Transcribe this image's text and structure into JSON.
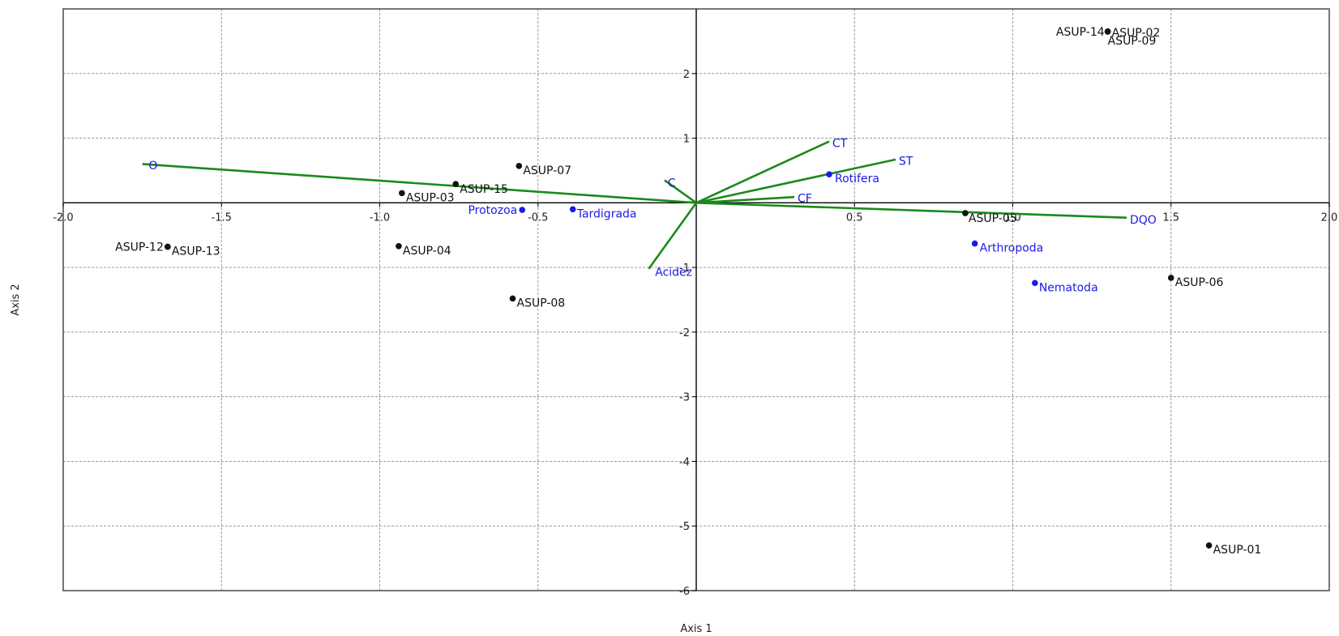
{
  "chart_data": {
    "type": "scatter",
    "title": "",
    "xlabel": "Axis 1",
    "ylabel": "Axis 2",
    "xlim": [
      -2.0,
      2.0
    ],
    "ylim": [
      -6,
      3.0
    ],
    "x_ticks": [
      -2.0,
      -1.5,
      -1.0,
      -0.5,
      0.5,
      1.0,
      1.5,
      2.0
    ],
    "x_tick_labels": [
      "-2.0",
      "-1.5",
      "-1.0",
      "-0.5",
      "0.5",
      "1.0",
      "1.5",
      "2.0"
    ],
    "y_ticks": [
      2,
      1,
      -1,
      -2,
      -3,
      -4,
      -5,
      -6
    ],
    "y_tick_labels": [
      "2",
      "1",
      "-1",
      "-2",
      "-3",
      "-4",
      "-5",
      "-6"
    ],
    "grid": true,
    "colors": {
      "sites": "#111111",
      "species": "#1a1ae6",
      "environment": "#1a8a1a"
    },
    "sites": [
      {
        "label": "ASUP-14",
        "x": 1.3,
        "y": 2.65,
        "anchor": "end",
        "dx": -4,
        "dy": 5
      },
      {
        "label": "ASUP-02",
        "x": 1.3,
        "y": 2.65,
        "anchor": "start",
        "dx": 5,
        "dy": 6
      },
      {
        "label": "ASUP-09",
        "x": 1.3,
        "y": 2.65,
        "anchor": "start",
        "dx": 0,
        "dy": 16
      },
      {
        "label": "ASUP-07",
        "x": -0.56,
        "y": 0.57,
        "anchor": "start",
        "dx": 5,
        "dy": 10
      },
      {
        "label": "ASUP-15",
        "x": -0.76,
        "y": 0.29,
        "anchor": "start",
        "dx": 5,
        "dy": 11
      },
      {
        "label": "ASUP-03",
        "x": -0.93,
        "y": 0.15,
        "anchor": "start",
        "dx": 5,
        "dy": 10
      },
      {
        "label": "ASUP-05",
        "x": 0.85,
        "y": -0.16,
        "anchor": "start",
        "dx": 4,
        "dy": 11
      },
      {
        "label": "ASUP-12",
        "x": -1.67,
        "y": -0.68,
        "anchor": "end",
        "dx": -5,
        "dy": 5
      },
      {
        "label": "ASUP-13",
        "x": -1.67,
        "y": -0.68,
        "anchor": "start",
        "dx": 5,
        "dy": 10
      },
      {
        "label": "ASUP-04",
        "x": -0.94,
        "y": -0.67,
        "anchor": "start",
        "dx": 5,
        "dy": 10
      },
      {
        "label": "ASUP-06",
        "x": 1.5,
        "y": -1.16,
        "anchor": "start",
        "dx": 5,
        "dy": 10
      },
      {
        "label": "ASUP-08",
        "x": -0.58,
        "y": -1.48,
        "anchor": "start",
        "dx": 5,
        "dy": 10
      },
      {
        "label": "ASUP-01",
        "x": 1.62,
        "y": -5.3,
        "anchor": "start",
        "dx": 5,
        "dy": 10
      }
    ],
    "species": [
      {
        "label": "Rotifera",
        "x": 0.42,
        "y": 0.44,
        "anchor": "start",
        "dx": 7,
        "dy": 10
      },
      {
        "label": "Protozoa",
        "x": -0.55,
        "y": -0.11,
        "anchor": "end",
        "dx": -6,
        "dy": 5
      },
      {
        "label": "Tardigrada",
        "x": -0.39,
        "y": -0.1,
        "anchor": "start",
        "dx": 5,
        "dy": 10
      },
      {
        "label": "Arthropoda",
        "x": 0.88,
        "y": -0.63,
        "anchor": "start",
        "dx": 6,
        "dy": 10
      },
      {
        "label": "Nematoda",
        "x": 1.07,
        "y": -1.24,
        "anchor": "start",
        "dx": 5,
        "dy": 10
      }
    ],
    "environment": [
      {
        "label": "O",
        "x": -1.75,
        "y": 0.6,
        "lx": -1.73,
        "ly": 0.52
      },
      {
        "label": "DQO",
        "x": 1.36,
        "y": -0.23,
        "lx": 1.37,
        "ly": -0.32
      },
      {
        "label": "CT",
        "x": 0.42,
        "y": 0.95,
        "lx": 0.43,
        "ly": 0.86
      },
      {
        "label": "ST",
        "x": 0.63,
        "y": 0.67,
        "lx": 0.64,
        "ly": 0.59
      },
      {
        "label": "C",
        "x": -0.1,
        "y": 0.35,
        "lx": -0.09,
        "ly": 0.25
      },
      {
        "label": "CF",
        "x": 0.31,
        "y": 0.09,
        "lx": 0.32,
        "ly": 0.01
      },
      {
        "label": "Acidez",
        "x": -0.15,
        "y": -1.02,
        "lx": -0.13,
        "ly": -1.13
      }
    ]
  }
}
